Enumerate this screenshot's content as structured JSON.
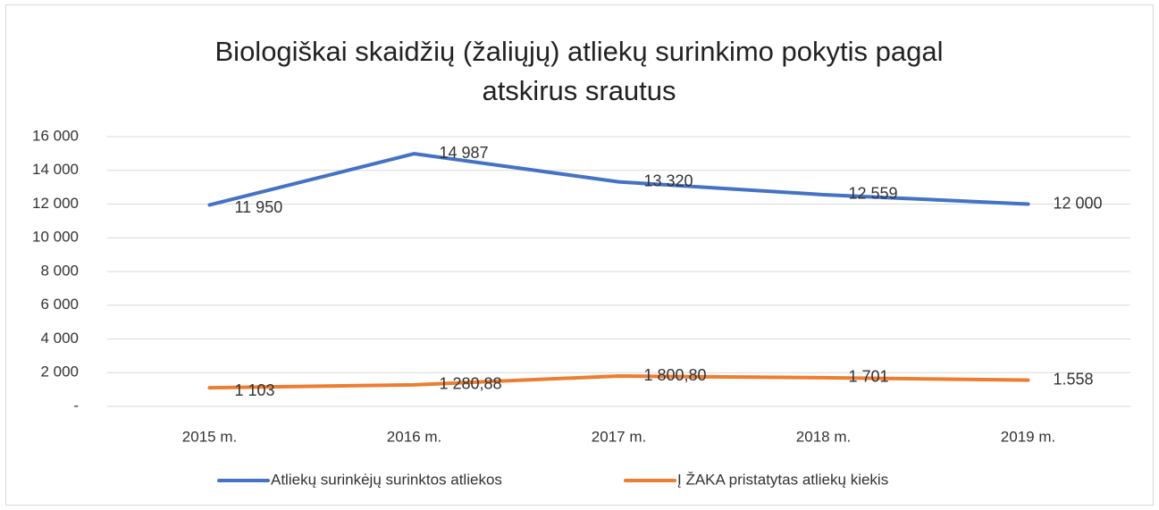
{
  "chart_data": {
    "type": "line",
    "title": "Biologiškai skaidžių (žaliųjų) atliekų surinkimo pokytis pagal atskirus srautus",
    "categories": [
      "2015 m.",
      "2016 m.",
      "2017 m.",
      "2018 m.",
      "2019 m."
    ],
    "series": [
      {
        "name": "Atliekų surinkėjų surinktos atliekos",
        "color": "#4472c4",
        "values": [
          11950,
          14987,
          13320,
          12559,
          12000
        ],
        "value_labels": [
          "11 950",
          "14 987",
          "13 320",
          "12 559",
          "12 000"
        ]
      },
      {
        "name": "Į ŽAKA pristatytas atliekų kiekis",
        "color": "#ed7d31",
        "values": [
          1103,
          1280.88,
          1800.8,
          1701,
          1558
        ],
        "value_labels": [
          "1 103",
          "1 280,88",
          "1 800,80",
          "1 701",
          "1.558"
        ]
      }
    ],
    "ylim": [
      0,
      16000
    ],
    "yticks": [
      {
        "value": 0,
        "label": "-"
      },
      {
        "value": 2000,
        "label": "2 000"
      },
      {
        "value": 4000,
        "label": "4 000"
      },
      {
        "value": 6000,
        "label": "6 000"
      },
      {
        "value": 8000,
        "label": "8 000"
      },
      {
        "value": 10000,
        "label": "10 000"
      },
      {
        "value": 12000,
        "label": "12 000"
      },
      {
        "value": 14000,
        "label": "14 000"
      },
      {
        "value": 16000,
        "label": "16 000"
      }
    ],
    "grid": true,
    "legend": "bottom"
  }
}
